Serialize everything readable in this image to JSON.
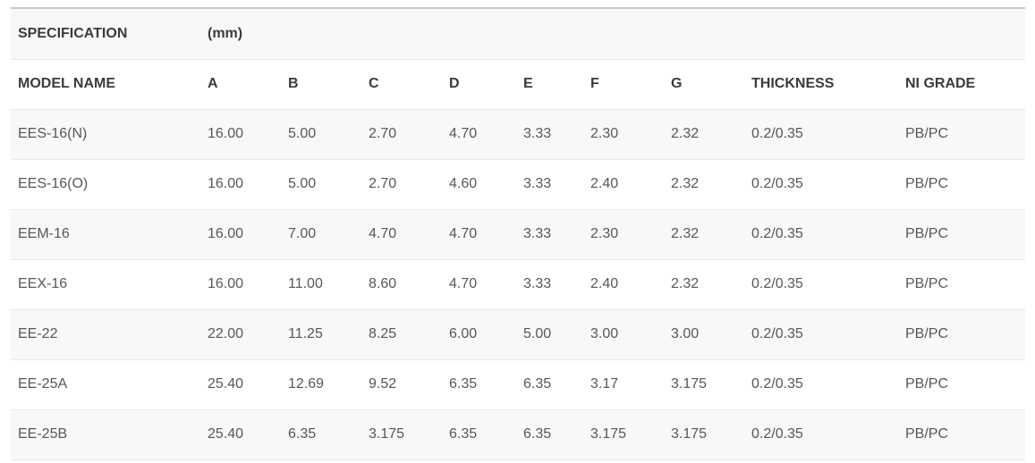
{
  "spec_header": {
    "title": "SPECIFICATION",
    "unit": "(mm)"
  },
  "chart_data": {
    "type": "table",
    "title": "SPECIFICATION (mm)",
    "columns": [
      "MODEL NAME",
      "A",
      "B",
      "C",
      "D",
      "E",
      "F",
      "G",
      "THICKNESS",
      "NI GRADE"
    ],
    "rows": [
      [
        "EES-16(N)",
        "16.00",
        "5.00",
        "2.70",
        "4.70",
        "3.33",
        "2.30",
        "2.32",
        "0.2/0.35",
        "PB/PC"
      ],
      [
        "EES-16(O)",
        "16.00",
        "5.00",
        "2.70",
        "4.60",
        "3.33",
        "2.40",
        "2.32",
        "0.2/0.35",
        "PB/PC"
      ],
      [
        "EEM-16",
        "16.00",
        "7.00",
        "4.70",
        "4.70",
        "3.33",
        "2.30",
        "2.32",
        "0.2/0.35",
        "PB/PC"
      ],
      [
        "EEX-16",
        "16.00",
        "11.00",
        "8.60",
        "4.70",
        "3.33",
        "2.40",
        "2.32",
        "0.2/0.35",
        "PB/PC"
      ],
      [
        "EE-22",
        "22.00",
        "11.25",
        "8.25",
        "6.00",
        "5.00",
        "3.00",
        "3.00",
        "0.2/0.35",
        "PB/PC"
      ],
      [
        "EE-25A",
        "25.40",
        "12.69",
        "9.52",
        "6.35",
        "6.35",
        "3.17",
        "3.175",
        "0.2/0.35",
        "PB/PC"
      ],
      [
        "EE-25B",
        "25.40",
        "6.35",
        "3.175",
        "6.35",
        "6.35",
        "3.175",
        "3.175",
        "0.2/0.35",
        "PB/PC"
      ]
    ],
    "layout": {
      "striped": true,
      "stripe_starts_on_first_row": true
    }
  },
  "colors": {
    "stripe_bg": "#f8f8f8",
    "row_divider": "#e9e9e9",
    "top_border": "#c9c9c9",
    "header_text": "#3b3b3b",
    "cell_text": "#575757",
    "background": "#ffffff"
  }
}
